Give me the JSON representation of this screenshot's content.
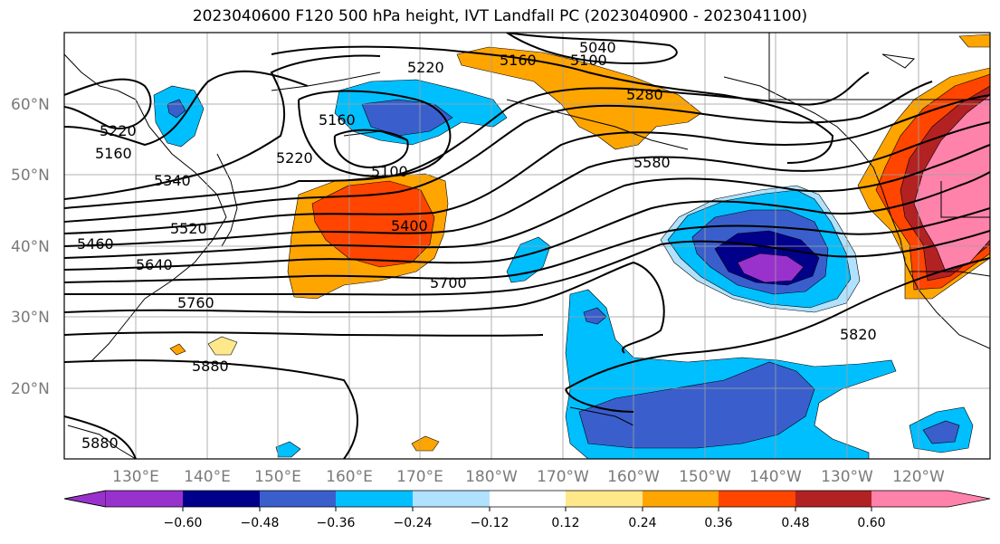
{
  "title": "2023040600 F120 500 hPa height, IVT Landfall PC (2023040900 - 2023041100)",
  "lat_labels": [
    "60°N",
    "50°N",
    "40°N",
    "30°N",
    "20°N"
  ],
  "lon_labels": [
    "130°E",
    "140°E",
    "150°E",
    "160°E",
    "170°E",
    "180°W",
    "170°W",
    "160°W",
    "150°W",
    "140°W",
    "130°W",
    "120°W"
  ],
  "contour_labels": {
    "c5040": "5040",
    "c5160a": "5160",
    "c5100a": "5100",
    "c5220a": "5220",
    "c5280": "5280",
    "c5160b": "5160",
    "c5220b": "5220",
    "c5160c": "5160",
    "c5220c": "5220",
    "c5100b": "5100",
    "c5340": "5340",
    "c5580": "5580",
    "c5520": "5520",
    "c5400": "5400",
    "c5460": "5460",
    "c5640": "5640",
    "c5700": "5700",
    "c5760": "5760",
    "c5820": "5820",
    "c5880": "5880",
    "c5880b": "5880"
  },
  "colorbar": {
    "ticks": [
      "−0.60",
      "−0.48",
      "−0.36",
      "−0.24",
      "−0.12",
      "0.12",
      "0.24",
      "0.36",
      "0.48",
      "0.60"
    ],
    "colors": [
      "#9932cc",
      "#00008b",
      "#3a5fcd",
      "#00bfff",
      "#b0e2ff",
      "#ffffff",
      "#ffe88a",
      "#ffa500",
      "#ff4500",
      "#b22222",
      "#ff82ab"
    ]
  }
}
